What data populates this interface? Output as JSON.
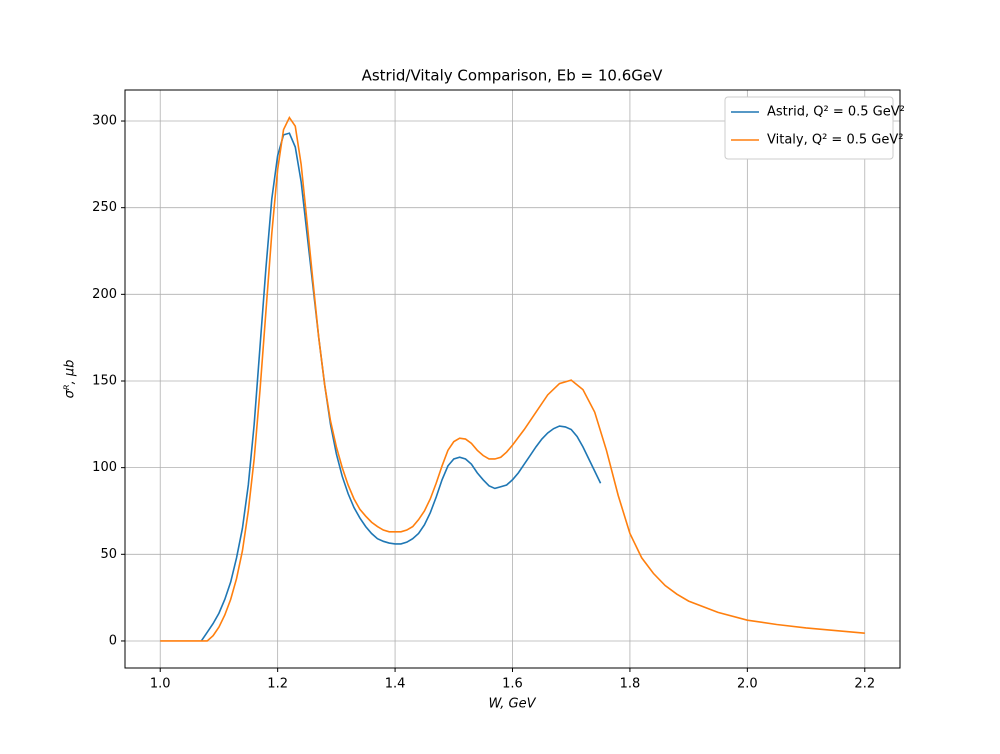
{
  "chart_data": {
    "type": "line",
    "title": "Astrid/Vitaly Comparison, Eb = 10.6GeV",
    "x_label": "W, GeV",
    "y_label": "σᴿ, μb",
    "series": [
      {
        "name": "Astrid, Q² = 0.5 GeV²",
        "color": "#1f77b4",
        "x": [
          1.07,
          1.08,
          1.09,
          1.1,
          1.11,
          1.12,
          1.13,
          1.14,
          1.15,
          1.16,
          1.17,
          1.18,
          1.19,
          1.2,
          1.21,
          1.22,
          1.23,
          1.24,
          1.25,
          1.26,
          1.27,
          1.28,
          1.29,
          1.3,
          1.31,
          1.32,
          1.33,
          1.34,
          1.35,
          1.36,
          1.37,
          1.38,
          1.39,
          1.4,
          1.41,
          1.42,
          1.43,
          1.44,
          1.45,
          1.46,
          1.47,
          1.48,
          1.49,
          1.5,
          1.51,
          1.52,
          1.53,
          1.54,
          1.55,
          1.56,
          1.57,
          1.58,
          1.59,
          1.6,
          1.61,
          1.62,
          1.63,
          1.64,
          1.65,
          1.66,
          1.67,
          1.68,
          1.69,
          1.7,
          1.71,
          1.72,
          1.73,
          1.74,
          1.75
        ],
        "values": [
          0,
          5,
          10,
          16,
          24,
          34,
          48,
          65,
          90,
          125,
          170,
          215,
          255,
          280,
          292,
          293,
          285,
          265,
          235,
          205,
          175,
          148,
          125,
          108,
          95,
          85,
          77,
          71,
          66,
          62,
          59,
          57.5,
          56.5,
          56,
          56,
          57,
          59,
          62,
          67,
          74,
          83,
          93,
          101,
          105,
          106,
          105,
          102,
          97,
          93,
          89.5,
          88,
          89,
          90,
          93,
          97,
          102,
          107,
          112,
          116.5,
          120,
          122.5,
          124,
          123.5,
          122,
          118,
          112,
          105,
          98,
          91
        ]
      },
      {
        "name": "Vitaly, Q² = 0.5 GeV²",
        "color": "#ff7f0e",
        "x": [
          1.0,
          1.05,
          1.08,
          1.09,
          1.1,
          1.11,
          1.12,
          1.13,
          1.14,
          1.15,
          1.16,
          1.17,
          1.18,
          1.19,
          1.2,
          1.21,
          1.22,
          1.23,
          1.24,
          1.25,
          1.26,
          1.27,
          1.28,
          1.29,
          1.3,
          1.31,
          1.32,
          1.33,
          1.34,
          1.35,
          1.36,
          1.37,
          1.38,
          1.39,
          1.4,
          1.41,
          1.42,
          1.43,
          1.44,
          1.45,
          1.46,
          1.47,
          1.48,
          1.49,
          1.5,
          1.51,
          1.52,
          1.53,
          1.54,
          1.55,
          1.56,
          1.57,
          1.58,
          1.59,
          1.6,
          1.62,
          1.64,
          1.66,
          1.68,
          1.7,
          1.72,
          1.74,
          1.76,
          1.78,
          1.8,
          1.82,
          1.84,
          1.86,
          1.88,
          1.9,
          1.95,
          2.0,
          2.05,
          2.1,
          2.15,
          2.2
        ],
        "values": [
          0,
          0,
          0,
          3,
          8,
          15,
          24,
          36,
          52,
          75,
          105,
          145,
          190,
          235,
          272,
          295,
          302,
          297,
          275,
          242,
          208,
          175,
          148,
          127,
          112,
          100,
          90,
          82,
          76,
          72,
          68.5,
          66,
          64,
          63,
          63,
          63,
          64,
          66,
          70,
          75,
          82,
          91,
          101,
          110,
          115,
          117,
          116.5,
          114,
          110,
          107,
          105,
          105,
          106,
          109,
          113,
          122,
          132,
          142,
          148.5,
          150.5,
          145,
          132,
          110,
          84,
          62,
          48,
          39,
          32,
          27,
          23,
          16.5,
          12,
          9.5,
          7.5,
          6,
          4.5
        ]
      }
    ],
    "xlim": [
      0.94,
      2.26
    ],
    "ylim": [
      -15.6,
      317.9
    ],
    "xticks": [
      {
        "value": 1,
        "label": "1.0"
      },
      1.2,
      1.4,
      1.6,
      1.8,
      {
        "value": 2,
        "label": "2.0"
      },
      2.2
    ],
    "yticks": [
      0,
      50,
      100,
      150,
      200,
      250,
      300
    ],
    "grid": true,
    "legend": "upper right"
  }
}
